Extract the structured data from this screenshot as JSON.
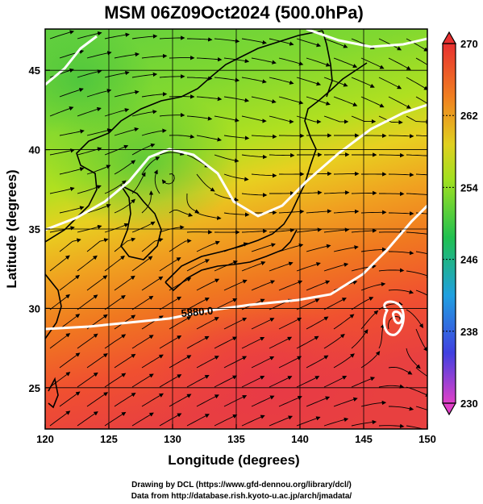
{
  "chart_data": {
    "type": "heatmap",
    "title": "MSM 06Z09Oct2024 (500.0hPa)",
    "xlabel": "Longitude (degrees)",
    "ylabel": "Latitude  (degrees)",
    "xlim": [
      120,
      150
    ],
    "ylim": [
      22.4,
      47.6
    ],
    "x_ticks": [
      120,
      125,
      130,
      135,
      140,
      145,
      150
    ],
    "y_ticks": [
      25,
      30,
      35,
      40,
      45
    ],
    "colorbar": {
      "min": 230,
      "max": 270,
      "ticks": [
        230,
        238,
        246,
        254,
        262,
        270
      ],
      "orientation": "vertical",
      "placement": "right",
      "colors": [
        "#e040c8",
        "#4040e0",
        "#20a0e0",
        "#20c050",
        "#a0e020",
        "#e0d020",
        "#f08020",
        "#e83030"
      ]
    },
    "contour_label": "5880.0",
    "grid": true,
    "features": [
      "temperature shading",
      "streamlines",
      "geopotential height contours",
      "coastlines"
    ]
  },
  "footer": {
    "line1": "Drawing by DCL (https://www.gfd-dennou.org/library/dcl/)",
    "line2": "Data from http://database.rish.kyoto-u.ac.jp/arch/jmadata/"
  }
}
